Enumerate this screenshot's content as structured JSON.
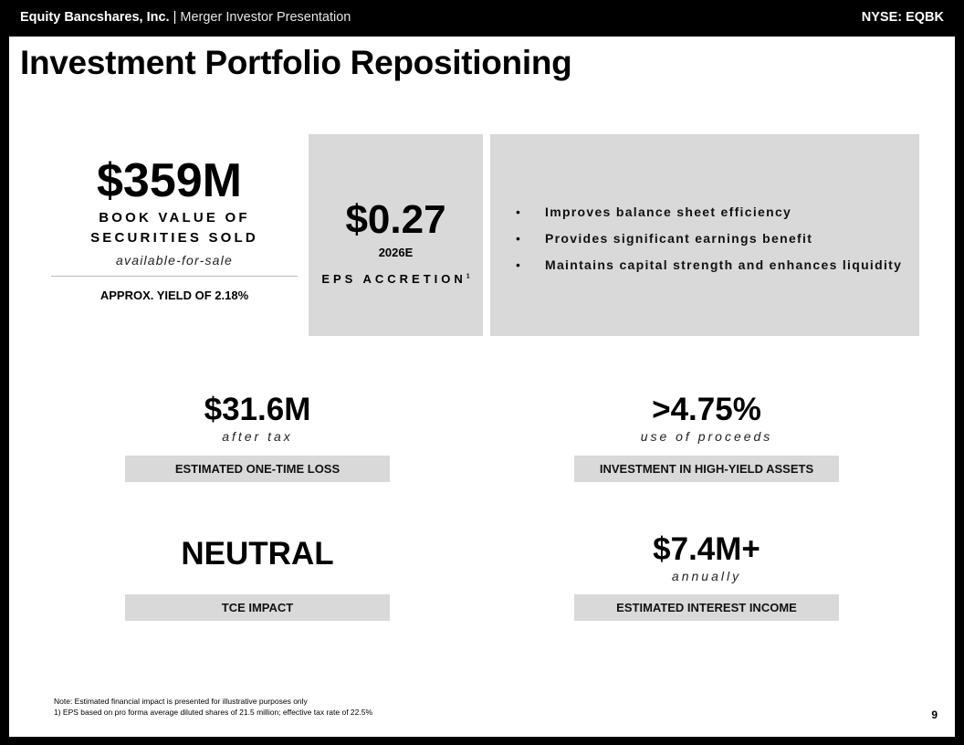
{
  "header": {
    "company": "Equity Bancshares, Inc.",
    "separator": "|",
    "deck": "Merger Investor Presentation",
    "ticker": "NYSE: EQBK"
  },
  "title": "Investment Portfolio Repositioning",
  "book_value": {
    "value": "$359M",
    "label_line1": "BOOK VALUE OF",
    "label_line2": "SECURITIES SOLD",
    "qualifier": "available-for-sale",
    "yield": "APPROX. YIELD OF 2.18%"
  },
  "eps": {
    "value": "$0.27",
    "year": "2026E",
    "label": "EPS ACCRETION",
    "footnote_marker": "1"
  },
  "benefits": [
    "Improves balance sheet efficiency",
    "Provides significant earnings benefit",
    "Maintains capital strength and enhances liquidity"
  ],
  "bullet_glyph": "•",
  "metrics": [
    {
      "value": "$31.6M",
      "sub": "after tax",
      "label": "ESTIMATED ONE-TIME LOSS"
    },
    {
      "value": ">4.75%",
      "sub": "use of proceeds",
      "label": "INVESTMENT IN HIGH-YIELD ASSETS"
    },
    {
      "value": "NEUTRAL",
      "sub": "",
      "label": "TCE IMPACT"
    },
    {
      "value": "$7.4M+",
      "sub": "annually",
      "label": "ESTIMATED INTEREST INCOME"
    }
  ],
  "notes": [
    "Note: Estimated financial impact is presented for illustrative purposes only",
    "1) EPS based on pro forma average diluted shares of 21.5 million; effective tax rate of 22.5%"
  ],
  "page_number": "9"
}
